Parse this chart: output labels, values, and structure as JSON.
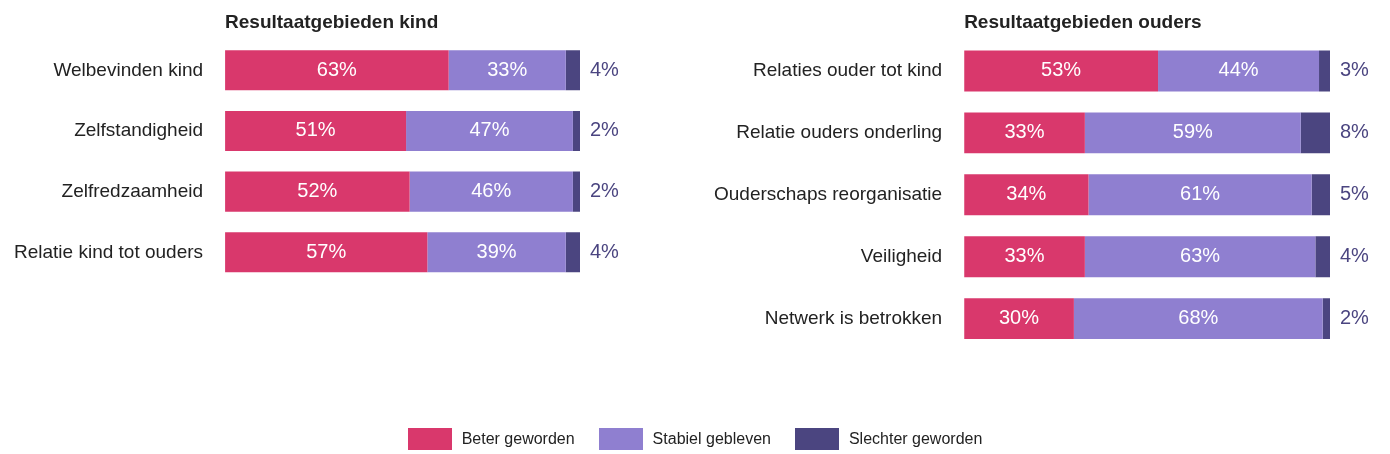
{
  "chart_data": [
    {
      "type": "bar",
      "orientation": "horizontal",
      "stacked": true,
      "title": "Resultaatgebieden kind",
      "categories": [
        "Welbevinden kind",
        "Zelfstandigheid",
        "Zelfredzaamheid",
        "Relatie kind tot ouders"
      ],
      "series": [
        {
          "name": "Beter geworden",
          "color": "#d9386c",
          "values": [
            63,
            51,
            52,
            57
          ],
          "value_labels": [
            "63%",
            "51%",
            "52%",
            "57%"
          ]
        },
        {
          "name": "Stabiel gebleven",
          "color": "#8f7fd0",
          "values": [
            33,
            47,
            46,
            39
          ],
          "value_labels": [
            "33%",
            "47%",
            "46%",
            "39%"
          ]
        },
        {
          "name": "Slechter geworden",
          "color": "#4b4580",
          "values": [
            4,
            2,
            2,
            4
          ],
          "value_labels": [
            "4%",
            "2%",
            "2%",
            "4%"
          ]
        }
      ],
      "legend": "bottom"
    },
    {
      "type": "bar",
      "orientation": "horizontal",
      "stacked": true,
      "title": "Resultaatgebieden ouders",
      "categories": [
        "Relaties ouder tot kind",
        "Relatie ouders onderling",
        "Ouderschaps reorganisatie",
        "Veiligheid",
        "Netwerk is betrokken"
      ],
      "series": [
        {
          "color": "#d9386c",
          "values": [
            53,
            33,
            34,
            33,
            30
          ],
          "value_labels": [
            "53%",
            "33%",
            "34%",
            "33%",
            "30%"
          ]
        },
        {
          "color": "#8f7fd0",
          "values": [
            44,
            59,
            61,
            63,
            68
          ],
          "value_labels": [
            "44%",
            "59%",
            "61%",
            "63%",
            "68%"
          ]
        },
        {
          "color": "#4b4580",
          "values": [
            3,
            8,
            5,
            4,
            2
          ],
          "value_labels": [
            "3%",
            "8%",
            "5%",
            "4%",
            "2%"
          ]
        }
      ]
    }
  ]
}
